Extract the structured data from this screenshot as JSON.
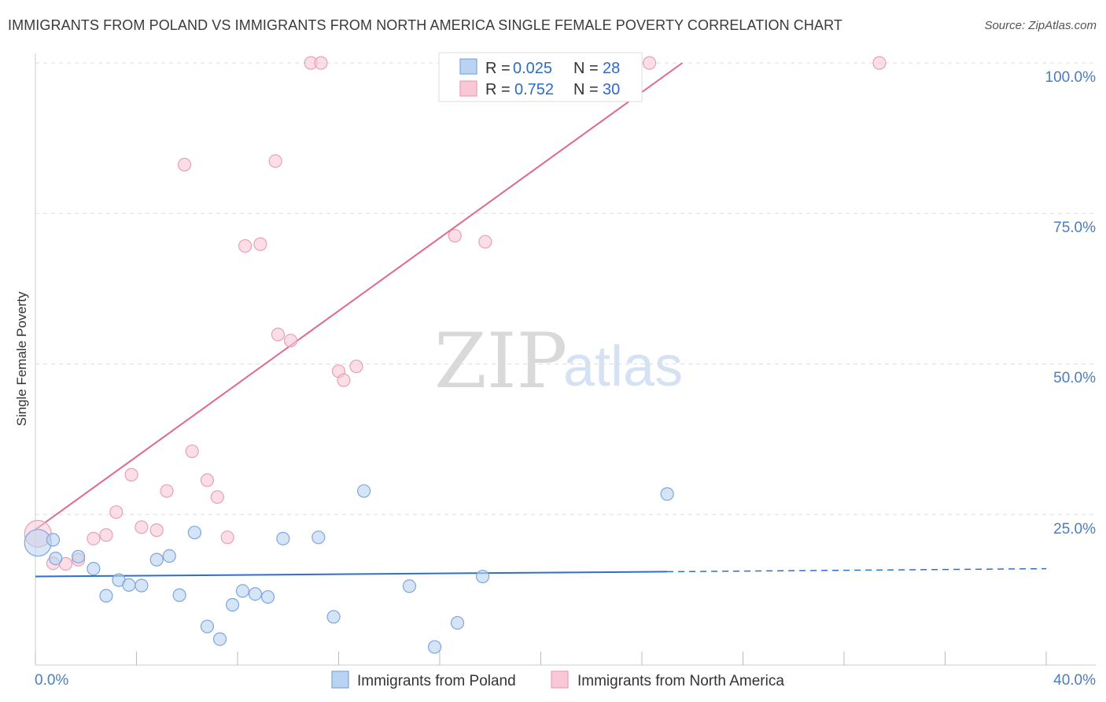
{
  "header": {
    "title": "IMMIGRANTS FROM POLAND VS IMMIGRANTS FROM NORTH AMERICA SINGLE FEMALE POVERTY CORRELATION CHART",
    "source": "Source: ZipAtlas.com"
  },
  "colors": {
    "poland_fill": "#b9d3f2",
    "poland_stroke": "#7ea6d9",
    "poland_line": "#2f6fcc",
    "na_fill": "#f8c8d6",
    "na_stroke": "#e7a1b6",
    "na_line": "#e06890",
    "grid": "#dddddd",
    "axis_label": "#4a7cc4"
  },
  "watermark": {
    "zip": "ZIP",
    "atlas": "atlas"
  },
  "legend": {
    "entries": [
      {
        "r_label": "R = ",
        "r_value": "0.025",
        "n_label": "N = ",
        "n_value": "28",
        "series": "poland"
      },
      {
        "r_label": "R = ",
        "r_value": "0.752",
        "n_label": "N = ",
        "n_value": "30",
        "series": "na"
      }
    ]
  },
  "chart_data": {
    "type": "scatter",
    "title": "IMMIGRANTS FROM POLAND VS IMMIGRANTS FROM NORTH AMERICA SINGLE FEMALE POVERTY CORRELATION CHART",
    "xlabel": "",
    "ylabel": "Single Female Poverty",
    "xlim": [
      0,
      40
    ],
    "ylim": [
      0,
      100
    ],
    "x_tick_labels": [
      "0.0%",
      "40.0%"
    ],
    "y_ticks": [
      25,
      50,
      75,
      100
    ],
    "y_tick_labels": [
      "25.0%",
      "50.0%",
      "75.0%",
      "100.0%"
    ],
    "grid": true,
    "series": [
      {
        "name": "Immigrants from Poland",
        "key": "poland",
        "r": 0.025,
        "n": 28,
        "trend": {
          "x0": 0,
          "y0": 14.7,
          "x1": 25,
          "y1": 15.5,
          "dash_to_x": 40,
          "dash_to_y": 16.0
        },
        "points": [
          {
            "x": 0.1,
            "y": 20.3,
            "big": true
          },
          {
            "x": 0.7,
            "y": 20.8
          },
          {
            "x": 0.8,
            "y": 17.7
          },
          {
            "x": 1.7,
            "y": 18.0
          },
          {
            "x": 2.3,
            "y": 16.0
          },
          {
            "x": 2.8,
            "y": 11.5
          },
          {
            "x": 3.3,
            "y": 14.1
          },
          {
            "x": 3.7,
            "y": 13.3
          },
          {
            "x": 4.2,
            "y": 13.2
          },
          {
            "x": 4.8,
            "y": 17.5
          },
          {
            "x": 5.3,
            "y": 18.1
          },
          {
            "x": 5.7,
            "y": 11.6
          },
          {
            "x": 6.3,
            "y": 22.0
          },
          {
            "x": 6.8,
            "y": 6.4
          },
          {
            "x": 7.3,
            "y": 4.3
          },
          {
            "x": 7.8,
            "y": 10.0
          },
          {
            "x": 8.2,
            "y": 12.3
          },
          {
            "x": 8.7,
            "y": 11.8
          },
          {
            "x": 9.2,
            "y": 11.3
          },
          {
            "x": 9.8,
            "y": 21.0
          },
          {
            "x": 11.2,
            "y": 21.2
          },
          {
            "x": 11.8,
            "y": 8.0
          },
          {
            "x": 13.0,
            "y": 28.9
          },
          {
            "x": 14.8,
            "y": 13.1
          },
          {
            "x": 15.8,
            "y": 3.0
          },
          {
            "x": 16.7,
            "y": 7.0
          },
          {
            "x": 17.7,
            "y": 14.7
          },
          {
            "x": 25.0,
            "y": 28.4
          }
        ]
      },
      {
        "name": "Immigrants from North America",
        "key": "na",
        "r": 0.752,
        "n": 30,
        "trend": {
          "x0": 0,
          "y0": 22.5,
          "x1": 25.6,
          "y1": 100.0
        },
        "points": [
          {
            "x": 0.1,
            "y": 21.8,
            "big": true
          },
          {
            "x": 0.7,
            "y": 16.9
          },
          {
            "x": 1.2,
            "y": 16.8
          },
          {
            "x": 1.7,
            "y": 17.5
          },
          {
            "x": 2.3,
            "y": 21.0
          },
          {
            "x": 2.8,
            "y": 21.6
          },
          {
            "x": 3.2,
            "y": 25.4
          },
          {
            "x": 3.8,
            "y": 31.6
          },
          {
            "x": 4.2,
            "y": 22.9
          },
          {
            "x": 4.8,
            "y": 22.4
          },
          {
            "x": 5.2,
            "y": 28.9
          },
          {
            "x": 5.9,
            "y": 83.1
          },
          {
            "x": 6.2,
            "y": 35.5
          },
          {
            "x": 6.8,
            "y": 30.7
          },
          {
            "x": 7.2,
            "y": 27.9
          },
          {
            "x": 7.6,
            "y": 21.2
          },
          {
            "x": 8.3,
            "y": 69.6
          },
          {
            "x": 8.9,
            "y": 69.9
          },
          {
            "x": 9.5,
            "y": 83.7
          },
          {
            "x": 9.6,
            "y": 54.9
          },
          {
            "x": 10.1,
            "y": 53.9
          },
          {
            "x": 10.9,
            "y": 100.0
          },
          {
            "x": 11.3,
            "y": 100.0
          },
          {
            "x": 12.0,
            "y": 48.8
          },
          {
            "x": 12.2,
            "y": 47.3
          },
          {
            "x": 12.7,
            "y": 49.6
          },
          {
            "x": 16.6,
            "y": 71.3
          },
          {
            "x": 17.8,
            "y": 70.3
          },
          {
            "x": 24.3,
            "y": 100.0
          },
          {
            "x": 33.4,
            "y": 100.0
          }
        ]
      }
    ]
  },
  "bottom_legend": {
    "poland_label": "Immigrants from Poland",
    "na_label": "Immigrants from North America"
  }
}
